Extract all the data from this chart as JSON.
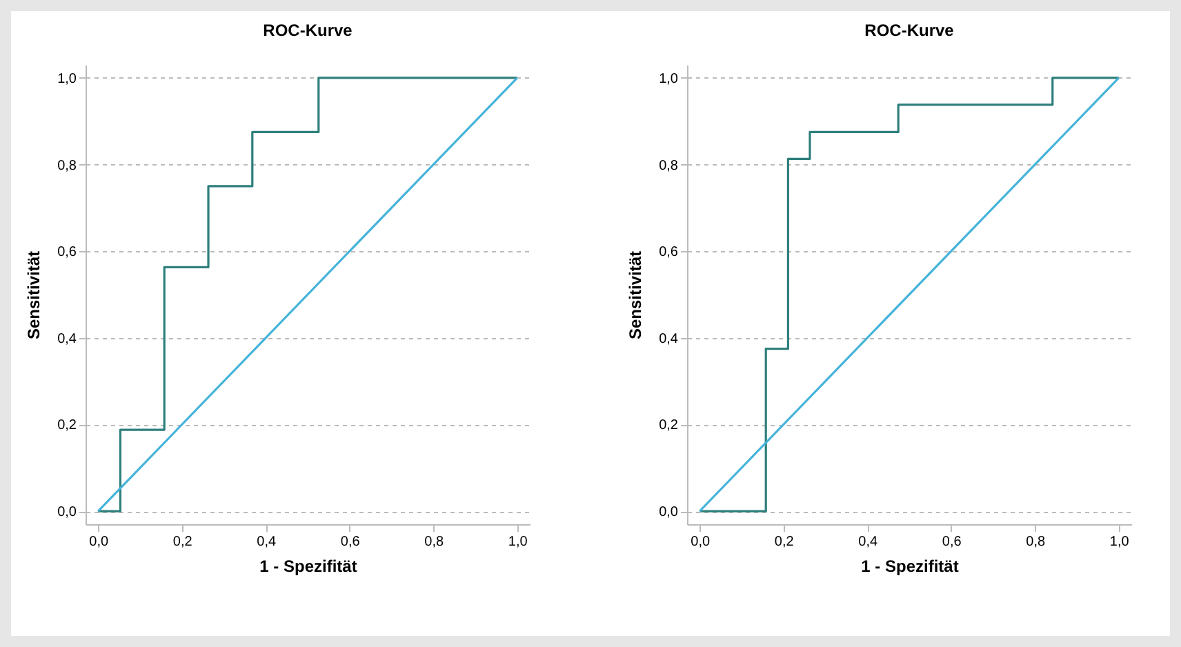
{
  "chart_data": [
    {
      "type": "line",
      "title": "ROC-Kurve",
      "xlabel": "1 - Spezifität",
      "ylabel": "Sensitivität",
      "xlim": [
        -0.03,
        1.03
      ],
      "ylim": [
        -0.03,
        1.03
      ],
      "xticks": [
        {
          "value": 0,
          "label": "0,0"
        },
        {
          "value": 0.2,
          "label": "0,2"
        },
        {
          "value": 0.4,
          "label": "0,4"
        },
        {
          "value": 0.6,
          "label": "0,6"
        },
        {
          "value": 0.8,
          "label": "0,8"
        },
        {
          "value": 1,
          "label": "1,0"
        }
      ],
      "yticks": [
        {
          "value": 0,
          "label": "0,0"
        },
        {
          "value": 0.2,
          "label": "0,2"
        },
        {
          "value": 0.4,
          "label": "0,4"
        },
        {
          "value": 0.6,
          "label": "0,6"
        },
        {
          "value": 0.8,
          "label": "0,8"
        },
        {
          "value": 1,
          "label": "1,0"
        }
      ],
      "grid": "y",
      "series": [
        {
          "color": "#2e7f7c",
          "x": [
            0,
            0.053,
            0.053,
            0.158,
            0.158,
            0.263,
            0.263,
            0.368,
            0.368,
            0.526,
            0.526,
            1
          ],
          "values": [
            0,
            0,
            0.188,
            0.188,
            0.563,
            0.563,
            0.75,
            0.75,
            0.875,
            0.875,
            1,
            1
          ]
        },
        {
          "color": "#45b3d9",
          "x": [
            0,
            1
          ],
          "values": [
            0,
            1
          ]
        }
      ]
    },
    {
      "type": "line",
      "title": "ROC-Kurve",
      "xlabel": "1 - Spezifität",
      "ylabel": "Sensitivität",
      "xlim": [
        -0.03,
        1.03
      ],
      "ylim": [
        -0.03,
        1.03
      ],
      "xticks": [
        {
          "value": 0,
          "label": "0,0"
        },
        {
          "value": 0.2,
          "label": "0,2"
        },
        {
          "value": 0.4,
          "label": "0,4"
        },
        {
          "value": 0.6,
          "label": "0,6"
        },
        {
          "value": 0.8,
          "label": "0,8"
        },
        {
          "value": 1,
          "label": "1,0"
        }
      ],
      "yticks": [
        {
          "value": 0,
          "label": "0,0"
        },
        {
          "value": 0.2,
          "label": "0,2"
        },
        {
          "value": 0.4,
          "label": "0,4"
        },
        {
          "value": 0.6,
          "label": "0,6"
        },
        {
          "value": 0.8,
          "label": "0,8"
        },
        {
          "value": 1,
          "label": "1,0"
        }
      ],
      "grid": "y",
      "series": [
        {
          "color": "#2e7f7c",
          "x": [
            0,
            0.158,
            0.158,
            0.211,
            0.211,
            0.263,
            0.263,
            0.474,
            0.474,
            0.842,
            0.842,
            1
          ],
          "values": [
            0,
            0,
            0.375,
            0.375,
            0.813,
            0.813,
            0.875,
            0.875,
            0.938,
            0.938,
            1,
            1
          ]
        },
        {
          "color": "#45b3d9",
          "x": [
            0,
            1
          ],
          "values": [
            0,
            1
          ]
        }
      ]
    }
  ]
}
